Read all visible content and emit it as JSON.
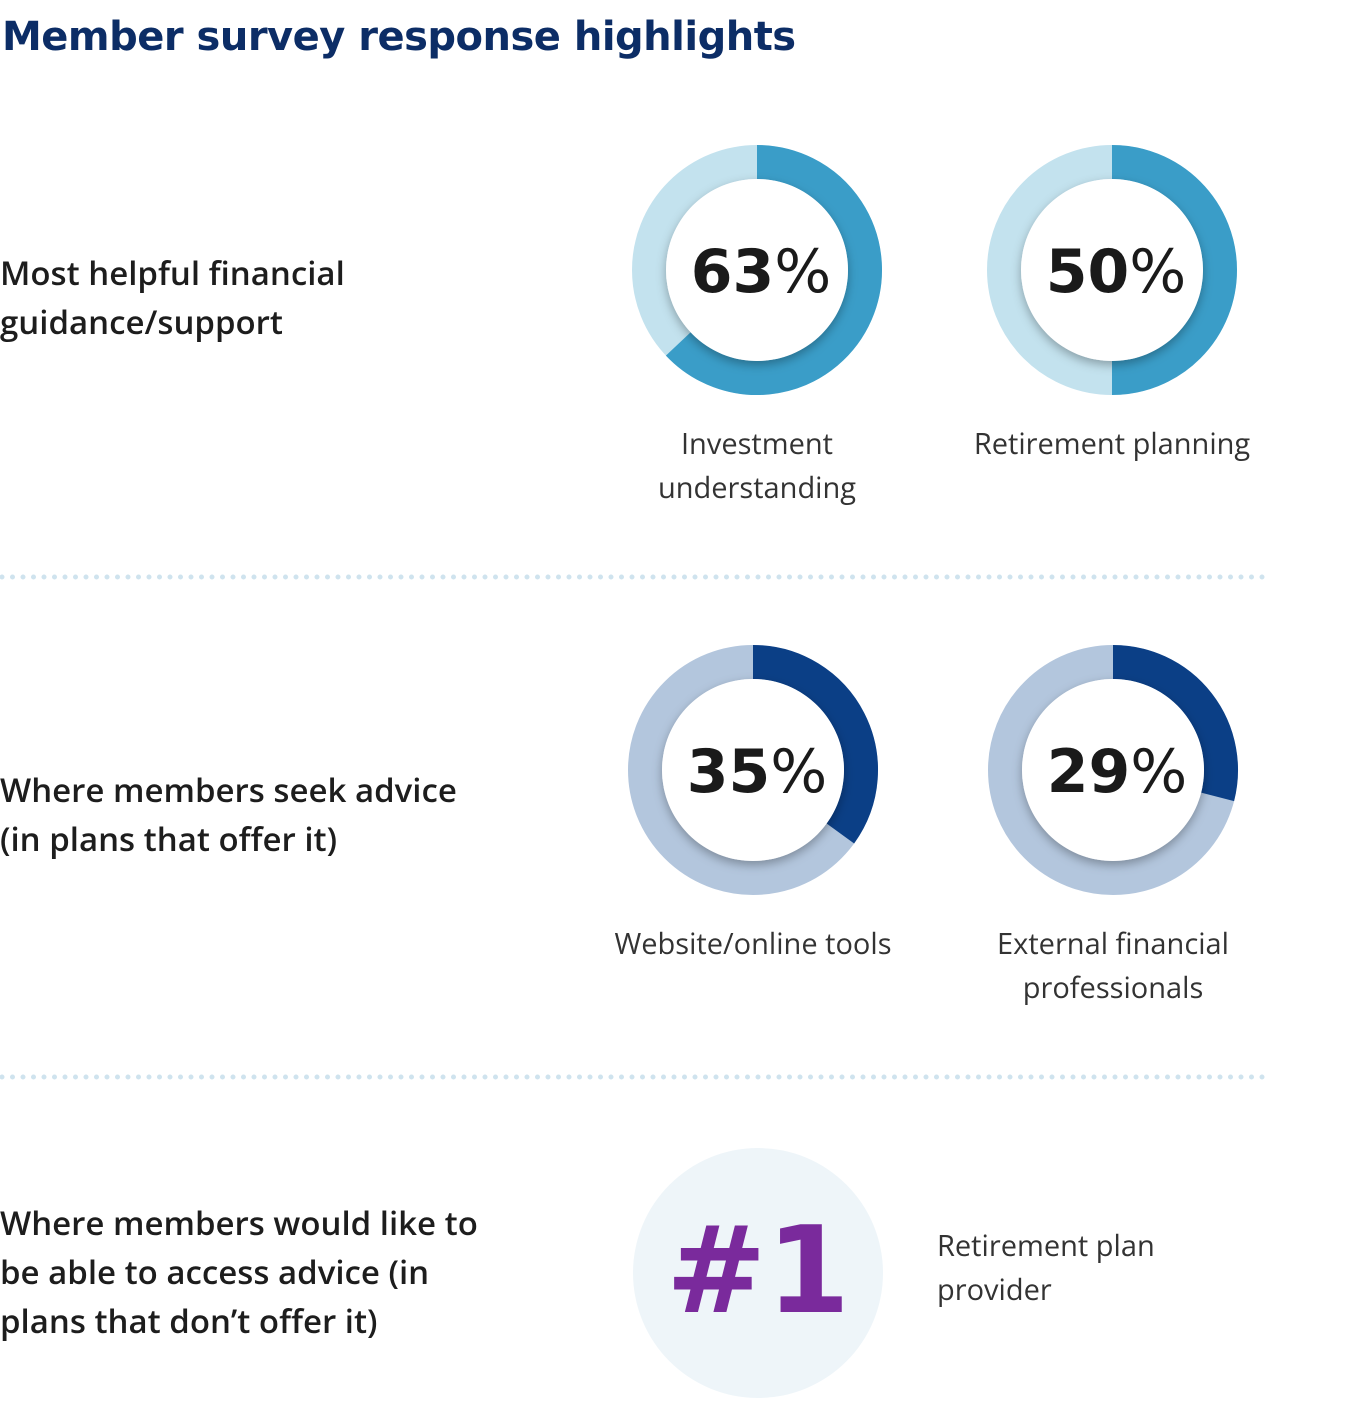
{
  "title": "Member survey response highlights",
  "sections": [
    {
      "label": "Most helpful financial guidance/support",
      "chart_data": [
        {
          "type": "donut",
          "categories": [
            "Investment understanding"
          ],
          "values": [
            63
          ],
          "value_labels": [
            "63%"
          ],
          "color": "#3a9dc8",
          "track_color": "#c3e2ee",
          "ylim": [
            0,
            100
          ]
        },
        {
          "type": "donut",
          "categories": [
            "Retirement planning"
          ],
          "values": [
            50
          ],
          "value_labels": [
            "50%"
          ],
          "color": "#3a9dc8",
          "track_color": "#c3e2ee",
          "ylim": [
            0,
            100
          ]
        }
      ]
    },
    {
      "label": "Where members seek advice (in plans that offer it)",
      "chart_data": [
        {
          "type": "donut",
          "categories": [
            "Website/online tools"
          ],
          "values": [
            35
          ],
          "value_labels": [
            "35%"
          ],
          "color": "#0b3f86",
          "track_color": "#b3c6dd",
          "ylim": [
            0,
            100
          ]
        },
        {
          "type": "donut",
          "categories": [
            "External financial professionals"
          ],
          "values": [
            29
          ],
          "value_labels": [
            "29%"
          ],
          "color": "#0b3f86",
          "track_color": "#b3c6dd",
          "ylim": [
            0,
            100
          ]
        }
      ]
    },
    {
      "label": "Where members would like to be able to access advice (in plans that don’t offer it)",
      "rank": "#1",
      "text": "Retirement plan provider"
    }
  ]
}
